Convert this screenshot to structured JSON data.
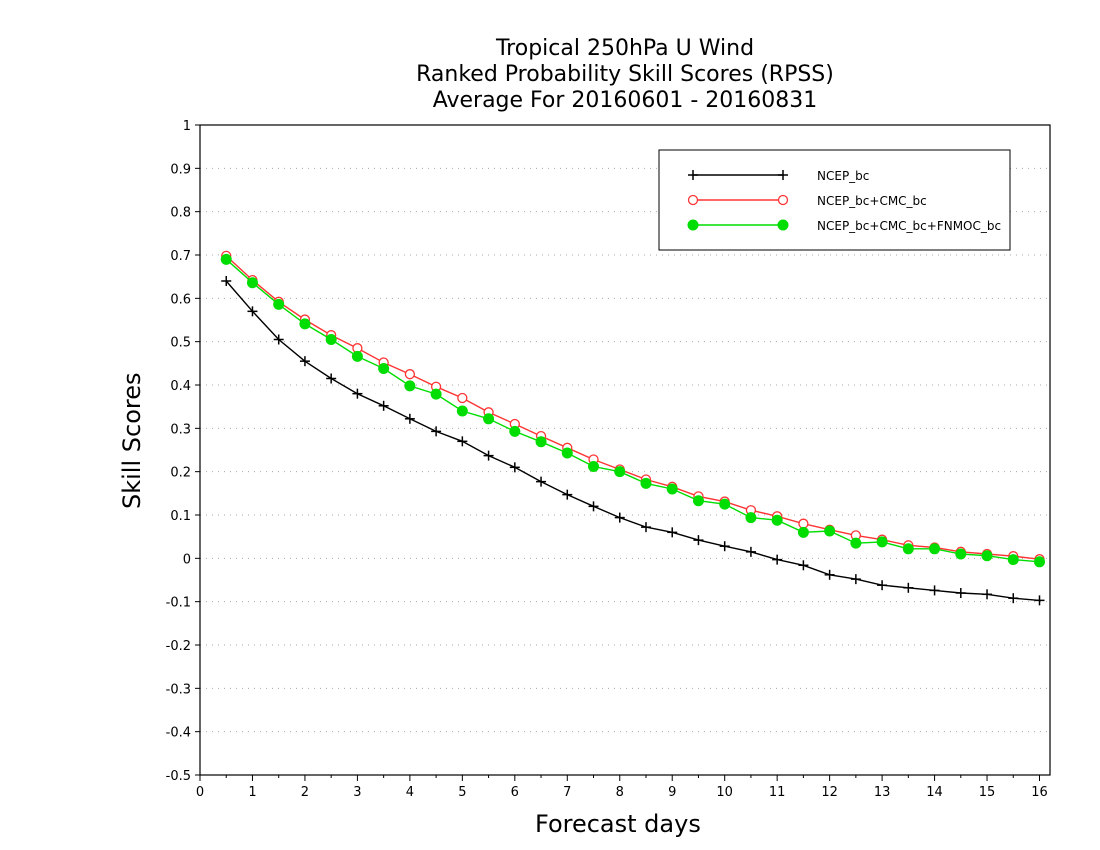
{
  "chart_data": {
    "type": "line",
    "title": [
      "Tropical 250hPa U Wind",
      "Ranked Probability Skill Scores (RPSS)",
      "Average For 20160601 - 20160831"
    ],
    "xlabel": "Forecast days",
    "ylabel": "Skill Scores",
    "xlim": [
      0,
      16.2
    ],
    "ylim": [
      -0.5,
      1
    ],
    "x_ticks": [
      0,
      1,
      2,
      3,
      4,
      5,
      6,
      7,
      8,
      9,
      10,
      11,
      12,
      13,
      14,
      15,
      16
    ],
    "y_ticks": [
      -0.5,
      -0.4,
      -0.3,
      -0.2,
      -0.1,
      0,
      0.1,
      0.2,
      0.3,
      0.4,
      0.5,
      0.6,
      0.7,
      0.8,
      0.9,
      1
    ],
    "y_tick_labels": [
      "-0.5",
      "-0.4",
      "-0.3",
      "-0.2",
      "-0.1",
      "0",
      "0.1",
      "0.2",
      "0.3",
      "0.4",
      "0.5",
      "0.6",
      "0.7",
      "0.8",
      "0.9",
      "1"
    ],
    "grid": true,
    "legend_position": "top-right",
    "x": [
      0.5,
      1,
      1.5,
      2,
      2.5,
      3,
      3.5,
      4,
      4.5,
      5,
      5.5,
      6,
      6.5,
      7,
      7.5,
      8,
      8.5,
      9,
      9.5,
      10,
      10.5,
      11,
      11.5,
      12,
      12.5,
      13,
      13.5,
      14,
      14.5,
      15,
      15.5,
      16
    ],
    "series": [
      {
        "name": "NCEP_bc",
        "color": "#000000",
        "marker": "plus",
        "values": [
          0.64,
          0.57,
          0.505,
          0.455,
          0.415,
          0.38,
          0.352,
          0.322,
          0.293,
          0.27,
          0.237,
          0.21,
          0.177,
          0.147,
          0.12,
          0.094,
          0.072,
          0.06,
          0.042,
          0.028,
          0.015,
          -0.003,
          -0.016,
          -0.038,
          -0.048,
          -0.062,
          -0.068,
          -0.074,
          -0.08,
          -0.083,
          -0.092,
          -0.097
        ]
      },
      {
        "name": "NCEP_bc+CMC_bc",
        "color": "#ff3333",
        "marker": "open-circle",
        "values": [
          0.698,
          0.642,
          0.592,
          0.551,
          0.515,
          0.485,
          0.452,
          0.425,
          0.396,
          0.37,
          0.337,
          0.31,
          0.282,
          0.255,
          0.228,
          0.205,
          0.182,
          0.165,
          0.143,
          0.131,
          0.111,
          0.097,
          0.08,
          0.066,
          0.053,
          0.043,
          0.03,
          0.025,
          0.015,
          0.01,
          0.005,
          -0.002
        ]
      },
      {
        "name": "NCEP_bc+CMC_bc+FNMOC_bc",
        "color": "#00dd00",
        "marker": "filled-circle",
        "values": [
          0.69,
          0.636,
          0.586,
          0.541,
          0.505,
          0.466,
          0.438,
          0.398,
          0.379,
          0.34,
          0.322,
          0.293,
          0.269,
          0.243,
          0.212,
          0.2,
          0.173,
          0.16,
          0.133,
          0.125,
          0.094,
          0.088,
          0.06,
          0.063,
          0.035,
          0.038,
          0.022,
          0.022,
          0.01,
          0.006,
          -0.003,
          -0.008
        ]
      }
    ]
  }
}
